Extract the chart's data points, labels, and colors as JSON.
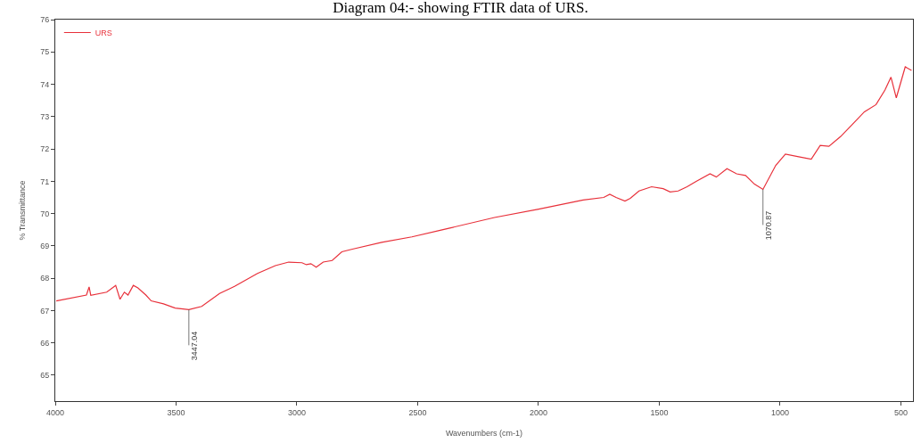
{
  "chart_data": {
    "type": "line",
    "title": "Diagram 04:- showing FTIR data of URS.",
    "xlabel": "Wavenumbers (cm-1)",
    "ylabel": "% Transmittance",
    "xlim": [
      4000,
      450
    ],
    "xticks": [
      4000,
      3500,
      3000,
      2500,
      2000,
      1500,
      1000,
      500
    ],
    "ylim": [
      64.2,
      76
    ],
    "yticks": [
      65,
      66,
      67,
      68,
      69,
      70,
      71,
      72,
      73,
      74,
      75,
      76
    ],
    "legend": "top left",
    "marker": "none",
    "line_style": "solid",
    "series": [
      {
        "name": "URS",
        "color": "#e8303a",
        "x": [
          3996,
          3871,
          3860,
          3853,
          3787,
          3750,
          3732,
          3714,
          3699,
          3677,
          3658,
          3625,
          3603,
          3552,
          3504,
          3447.04,
          3394,
          3320,
          3258,
          3163,
          3089,
          3034,
          2979,
          2961,
          2942,
          2920,
          2891,
          2854,
          2814,
          2770,
          2649,
          2524,
          2403,
          2182,
          1999,
          1815,
          1730,
          1705,
          1679,
          1642,
          1620,
          1584,
          1532,
          1484,
          1455,
          1422,
          1385,
          1349,
          1290,
          1264,
          1220,
          1180,
          1143,
          1106,
          1070.87,
          1018,
          978,
          923,
          871,
          834,
          798,
          750,
          702,
          651,
          603,
          566,
          541,
          519,
          482,
          456
        ],
        "values": [
          67.3,
          67.48,
          67.73,
          67.47,
          67.57,
          67.78,
          67.35,
          67.57,
          67.48,
          67.78,
          67.7,
          67.48,
          67.3,
          67.21,
          67.08,
          67.03,
          67.13,
          67.53,
          67.75,
          68.15,
          68.39,
          68.5,
          68.48,
          68.42,
          68.45,
          68.34,
          68.5,
          68.55,
          68.82,
          68.9,
          69.11,
          69.28,
          69.49,
          69.88,
          70.14,
          70.42,
          70.5,
          70.6,
          70.5,
          70.39,
          70.47,
          70.7,
          70.83,
          70.77,
          70.67,
          70.7,
          70.83,
          70.99,
          71.23,
          71.13,
          71.39,
          71.23,
          71.18,
          70.91,
          70.75,
          71.49,
          71.84,
          71.76,
          71.68,
          72.11,
          72.08,
          72.38,
          72.75,
          73.15,
          73.37,
          73.82,
          74.22,
          73.58,
          74.54,
          74.43
        ]
      }
    ],
    "annotations": [
      {
        "text": "3447.04",
        "x": 3447.04,
        "y": 67.03
      },
      {
        "text": "1070.87",
        "x": 1070.87,
        "y": 70.75
      }
    ]
  }
}
